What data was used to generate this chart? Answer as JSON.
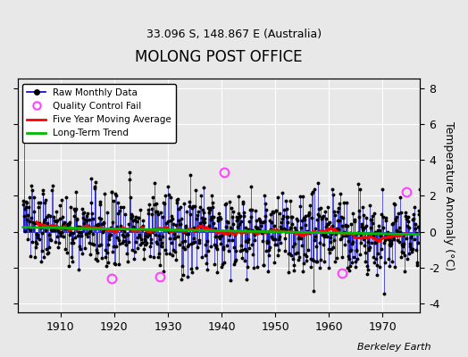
{
  "title": "MOLONG POST OFFICE",
  "subtitle": "33.096 S, 148.867 E (Australia)",
  "ylabel": "Temperature Anomaly (°C)",
  "credit": "Berkeley Earth",
  "ylim": [
    -4.5,
    8.5
  ],
  "yticks": [
    -4,
    -2,
    0,
    2,
    4,
    6,
    8
  ],
  "year_start": 1903,
  "year_end": 1976,
  "background_color": "#e8e8e8",
  "plot_bg_color": "#e8e8e8",
  "raw_line_color": "#0000cc",
  "raw_marker_color": "#000000",
  "qc_fail_color": "#ff44ff",
  "moving_avg_color": "#ff0000",
  "trend_color": "#00bb00",
  "grid_color": "#ffffff",
  "seed": 137,
  "qc_fail_times": [
    1919.5,
    1928.5,
    1940.5,
    1962.5,
    1974.5
  ],
  "qc_fail_values": [
    -2.6,
    -2.5,
    3.3,
    -2.3,
    2.2
  ]
}
